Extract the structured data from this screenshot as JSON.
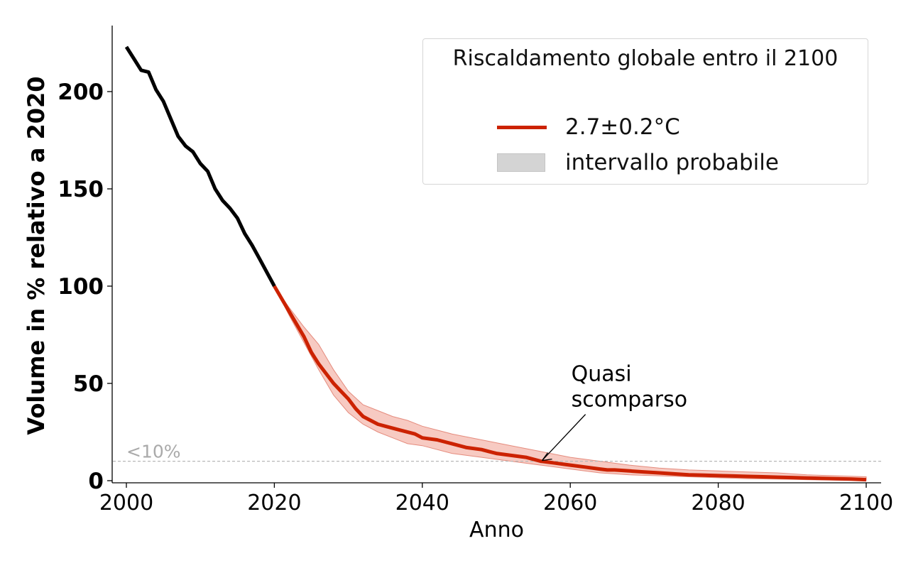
{
  "chart_data": {
    "type": "line",
    "xlabel": "Anno",
    "ylabel": "Volume in % relativo a 2020",
    "xlim": [
      1998,
      2102
    ],
    "ylim": [
      0,
      233
    ],
    "xticks": [
      2000,
      2020,
      2040,
      2060,
      2080,
      2100
    ],
    "yticks": [
      0,
      50,
      100,
      150,
      200
    ],
    "grid": false,
    "legend": {
      "title": "Riscaldamento globale entro il 2100",
      "placement": "top-right",
      "entries": [
        "2.7±0.2°C",
        "intervallo probabile"
      ]
    },
    "threshold": {
      "y": 10,
      "label": "<10%"
    },
    "annotation": {
      "text_lines": [
        "Quasi",
        "scomparso"
      ],
      "x": 2056,
      "y": 10,
      "text_x": 2061,
      "text_y": 37
    },
    "colors": {
      "historical": "#000000",
      "projection": "#cc2200",
      "band": "#f4b8ae",
      "threshold": "#b8b8b8"
    },
    "series": [
      {
        "role": "historical",
        "x": [
          2000,
          2001,
          2002,
          2003,
          2004,
          2005,
          2006,
          2007,
          2008,
          2009,
          2010,
          2011,
          2012,
          2013,
          2014,
          2015,
          2016,
          2017,
          2018,
          2019,
          2020
        ],
        "values": [
          223,
          217,
          211,
          210,
          201,
          195,
          186,
          177,
          172,
          169,
          163,
          159,
          150,
          144,
          140,
          135,
          127,
          121,
          114,
          107,
          100
        ]
      },
      {
        "role": "projection",
        "name": "2.7±0.2°C",
        "x": [
          2020,
          2022,
          2024,
          2025,
          2026,
          2028,
          2029,
          2030,
          2031,
          2032,
          2033,
          2034,
          2035,
          2037,
          2039,
          2040,
          2042,
          2044,
          2046,
          2048,
          2049,
          2050,
          2052,
          2054,
          2056,
          2058,
          2060,
          2062,
          2064,
          2065,
          2066,
          2068,
          2070,
          2072,
          2074,
          2076,
          2078,
          2080,
          2082,
          2084,
          2086,
          2088,
          2090,
          2092,
          2094,
          2096,
          2098,
          2100
        ],
        "values": [
          100,
          87,
          74,
          66,
          60,
          50,
          46,
          42,
          37,
          33,
          31,
          29,
          28,
          26,
          24,
          22,
          21,
          19,
          17,
          16,
          15,
          14,
          13,
          12,
          10,
          9,
          8,
          7,
          6,
          5.5,
          5.5,
          5,
          4.5,
          4,
          3.5,
          3,
          2.8,
          2.6,
          2.4,
          2.2,
          2,
          1.8,
          1.6,
          1.4,
          1.2,
          1,
          0.8,
          0.5
        ]
      }
    ],
    "band": {
      "name": "intervallo probabile",
      "x": [
        2020,
        2022,
        2024,
        2026,
        2028,
        2030,
        2032,
        2034,
        2036,
        2038,
        2040,
        2044,
        2048,
        2052,
        2056,
        2060,
        2064,
        2068,
        2072,
        2076,
        2080,
        2084,
        2088,
        2092,
        2096,
        2100
      ],
      "lower": [
        100,
        85,
        71,
        57,
        44,
        35,
        29,
        25,
        22,
        19,
        18,
        14,
        12,
        10,
        8,
        6,
        4,
        3,
        2.5,
        2,
        1.5,
        1,
        0.8,
        0.5,
        0.3,
        0.2
      ],
      "upper": [
        100,
        89,
        79,
        70,
        57,
        46,
        39,
        36,
        33,
        31,
        28,
        24,
        21,
        18,
        15,
        12,
        10,
        8,
        6.5,
        5.5,
        5,
        4.5,
        4,
        3,
        2.5,
        2
      ]
    }
  }
}
